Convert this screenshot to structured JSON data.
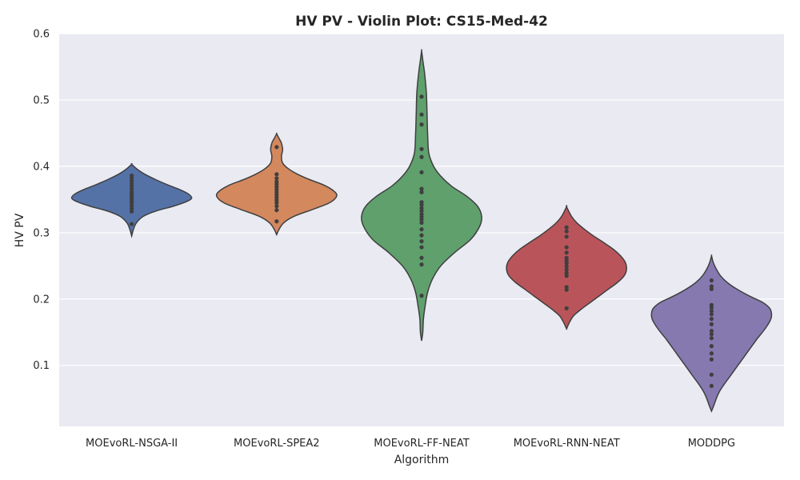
{
  "chart_data": {
    "type": "violin",
    "title": "HV PV - Violin Plot: CS15-Med-42",
    "xlabel": "Algorithm",
    "ylabel": "HV PV",
    "categories": [
      "MOEvoRL-NSGA-II",
      "MOEvoRL-SPEA2",
      "MOEvoRL-FF-NEAT",
      "MOEvoRL-RNN-NEAT",
      "MODDPG"
    ],
    "yticks": [
      "0.1",
      "0.2",
      "0.3",
      "0.4",
      "0.5",
      "0.6"
    ],
    "ylim": [
      0.008,
      0.6
    ],
    "grid": true,
    "colors": [
      "#5572a6",
      "#d3885e",
      "#5fa06d",
      "#b9555a",
      "#8679b0"
    ],
    "series": [
      {
        "category": "MOEvoRL-NSGA-II",
        "range": [
          0.295,
          0.403
        ],
        "profile": [
          [
            0.295,
            0
          ],
          [
            0.305,
            0.03
          ],
          [
            0.315,
            0.08
          ],
          [
            0.325,
            0.2
          ],
          [
            0.333,
            0.42
          ],
          [
            0.34,
            0.7
          ],
          [
            0.347,
            0.92
          ],
          [
            0.352,
            1.0
          ],
          [
            0.358,
            0.95
          ],
          [
            0.365,
            0.8
          ],
          [
            0.372,
            0.6
          ],
          [
            0.38,
            0.4
          ],
          [
            0.388,
            0.22
          ],
          [
            0.395,
            0.1
          ],
          [
            0.403,
            0
          ]
        ],
        "points": [
          0.313,
          0.332,
          0.336,
          0.34,
          0.344,
          0.347,
          0.35,
          0.353,
          0.356,
          0.359,
          0.362,
          0.366,
          0.37,
          0.374,
          0.378,
          0.382,
          0.386
        ]
      },
      {
        "category": "MOEvoRL-SPEA2",
        "range": [
          0.297,
          0.449
        ],
        "profile": [
          [
            0.297,
            0
          ],
          [
            0.305,
            0.04
          ],
          [
            0.315,
            0.12
          ],
          [
            0.325,
            0.3
          ],
          [
            0.335,
            0.6
          ],
          [
            0.345,
            0.88
          ],
          [
            0.355,
            1.0
          ],
          [
            0.363,
            0.95
          ],
          [
            0.372,
            0.78
          ],
          [
            0.38,
            0.55
          ],
          [
            0.388,
            0.35
          ],
          [
            0.396,
            0.2
          ],
          [
            0.405,
            0.1
          ],
          [
            0.415,
            0.08
          ],
          [
            0.425,
            0.1
          ],
          [
            0.435,
            0.08
          ],
          [
            0.442,
            0.04
          ],
          [
            0.449,
            0
          ]
        ],
        "points": [
          0.317,
          0.334,
          0.34,
          0.345,
          0.349,
          0.353,
          0.357,
          0.361,
          0.365,
          0.369,
          0.373,
          0.377,
          0.382,
          0.388,
          0.429
        ]
      },
      {
        "category": "MOEvoRL-FF-NEAT",
        "range": [
          0.137,
          0.574
        ],
        "profile": [
          [
            0.137,
            0
          ],
          [
            0.15,
            0.02
          ],
          [
            0.17,
            0.03
          ],
          [
            0.19,
            0.06
          ],
          [
            0.21,
            0.1
          ],
          [
            0.23,
            0.18
          ],
          [
            0.25,
            0.32
          ],
          [
            0.27,
            0.55
          ],
          [
            0.29,
            0.82
          ],
          [
            0.31,
            0.97
          ],
          [
            0.325,
            1.0
          ],
          [
            0.34,
            0.93
          ],
          [
            0.355,
            0.75
          ],
          [
            0.37,
            0.5
          ],
          [
            0.385,
            0.32
          ],
          [
            0.4,
            0.2
          ],
          [
            0.42,
            0.12
          ],
          [
            0.45,
            0.1
          ],
          [
            0.48,
            0.09
          ],
          [
            0.51,
            0.08
          ],
          [
            0.54,
            0.05
          ],
          [
            0.56,
            0.02
          ],
          [
            0.574,
            0
          ]
        ],
        "points": [
          0.205,
          0.252,
          0.262,
          0.278,
          0.287,
          0.296,
          0.305,
          0.315,
          0.32,
          0.324,
          0.328,
          0.333,
          0.337,
          0.342,
          0.346,
          0.361,
          0.366,
          0.391,
          0.414,
          0.426,
          0.463,
          0.478,
          0.505
        ]
      },
      {
        "category": "MOEvoRL-RNN-NEAT",
        "range": [
          0.155,
          0.339
        ],
        "profile": [
          [
            0.155,
            0
          ],
          [
            0.165,
            0.05
          ],
          [
            0.175,
            0.12
          ],
          [
            0.185,
            0.25
          ],
          [
            0.195,
            0.4
          ],
          [
            0.205,
            0.55
          ],
          [
            0.215,
            0.7
          ],
          [
            0.225,
            0.85
          ],
          [
            0.235,
            0.96
          ],
          [
            0.245,
            1.0
          ],
          [
            0.255,
            0.98
          ],
          [
            0.265,
            0.9
          ],
          [
            0.275,
            0.78
          ],
          [
            0.285,
            0.62
          ],
          [
            0.295,
            0.45
          ],
          [
            0.305,
            0.3
          ],
          [
            0.315,
            0.17
          ],
          [
            0.325,
            0.08
          ],
          [
            0.339,
            0
          ]
        ],
        "points": [
          0.186,
          0.214,
          0.218,
          0.235,
          0.239,
          0.244,
          0.249,
          0.254,
          0.258,
          0.262,
          0.27,
          0.278,
          0.294,
          0.302,
          0.308
        ]
      },
      {
        "category": "MODDPG",
        "range": [
          0.031,
          0.265
        ],
        "profile": [
          [
            0.031,
            0
          ],
          [
            0.04,
            0.04
          ],
          [
            0.05,
            0.08
          ],
          [
            0.06,
            0.13
          ],
          [
            0.07,
            0.2
          ],
          [
            0.08,
            0.28
          ],
          [
            0.09,
            0.36
          ],
          [
            0.1,
            0.44
          ],
          [
            0.11,
            0.52
          ],
          [
            0.12,
            0.6
          ],
          [
            0.13,
            0.68
          ],
          [
            0.14,
            0.76
          ],
          [
            0.15,
            0.85
          ],
          [
            0.16,
            0.93
          ],
          [
            0.17,
            0.99
          ],
          [
            0.178,
            1.0
          ],
          [
            0.186,
            0.97
          ],
          [
            0.195,
            0.85
          ],
          [
            0.205,
            0.62
          ],
          [
            0.215,
            0.42
          ],
          [
            0.225,
            0.26
          ],
          [
            0.235,
            0.15
          ],
          [
            0.245,
            0.08
          ],
          [
            0.255,
            0.03
          ],
          [
            0.265,
            0
          ]
        ],
        "points": [
          0.069,
          0.086,
          0.109,
          0.118,
          0.129,
          0.141,
          0.147,
          0.152,
          0.162,
          0.17,
          0.177,
          0.182,
          0.187,
          0.191,
          0.215,
          0.219,
          0.228
        ]
      }
    ]
  }
}
